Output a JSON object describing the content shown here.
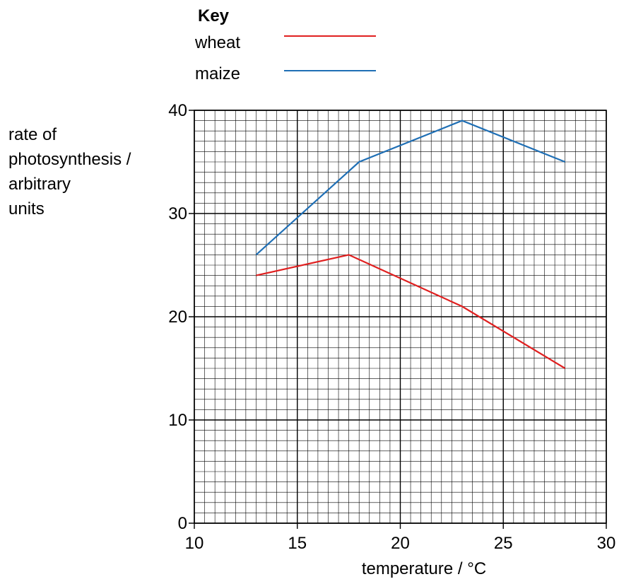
{
  "chart_data": {
    "type": "line",
    "title": "",
    "xlabel": "temperature / °C",
    "ylabel_lines": [
      "rate of",
      "photosynthesis /",
      "arbitrary",
      "units"
    ],
    "xlim": [
      10,
      30
    ],
    "ylim": [
      0,
      40
    ],
    "x_ticks": [
      10,
      15,
      20,
      25,
      30
    ],
    "y_ticks": [
      0,
      10,
      20,
      30,
      40
    ],
    "grid": true,
    "legend": {
      "title": "Key",
      "placement": "top"
    },
    "series": [
      {
        "name": "wheat",
        "color": "#e02020",
        "points": [
          [
            13,
            24
          ],
          [
            17.5,
            26
          ],
          [
            23,
            21
          ],
          [
            28,
            15
          ]
        ]
      },
      {
        "name": "maize",
        "color": "#1f6fb5",
        "points": [
          [
            13,
            26
          ],
          [
            18,
            35
          ],
          [
            23,
            39
          ],
          [
            28,
            35
          ]
        ]
      }
    ]
  }
}
